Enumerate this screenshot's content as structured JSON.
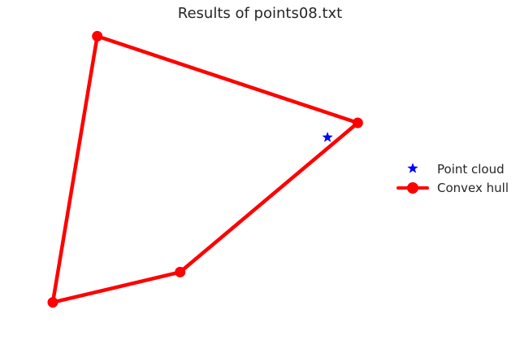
{
  "chart_data": {
    "type": "scatter",
    "title": "Results of points08.txt",
    "xlabel": "",
    "ylabel": "",
    "grid": false,
    "axes_visible": false,
    "legend_placement": "center-right",
    "series": [
      {
        "name": "Point cloud",
        "kind": "scatter",
        "marker": "star",
        "color": "#0000ff",
        "points": [
          [
            0.8647,
            0.6235
          ]
        ]
      },
      {
        "name": "Convex hull",
        "kind": "line",
        "marker": "circle",
        "color": "#ff0000",
        "closed": true,
        "points": [
          [
            0.1398,
            0.9926
          ],
          [
            0.9598,
            0.6765
          ],
          [
            0.4008,
            0.1324
          ],
          [
            0.0,
            0.0221
          ],
          [
            0.1398,
            0.9926
          ]
        ]
      }
    ]
  }
}
